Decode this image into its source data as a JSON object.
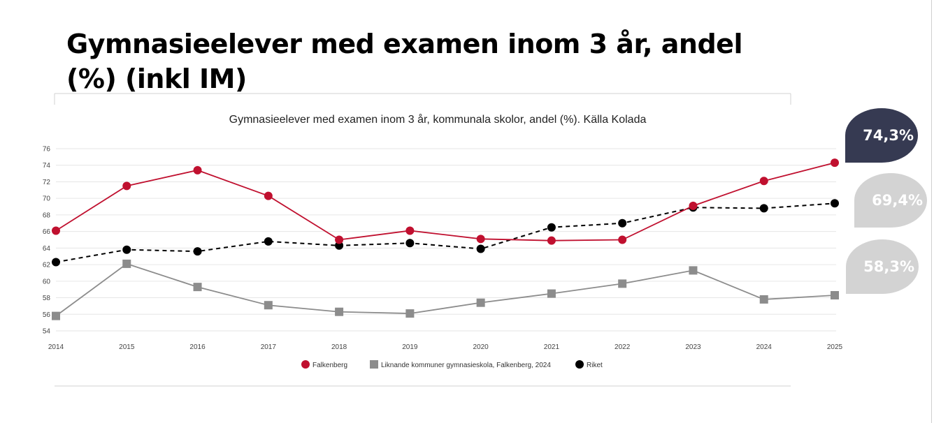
{
  "title": "Gymnasieelever med examen inom 3 år, andel (%) (inkl IM)",
  "callouts": [
    {
      "label": "74,3%",
      "color": "#363a52"
    },
    {
      "label": "69,4%",
      "color": "#d3d3d3"
    },
    {
      "label": "58,3%",
      "color": "#d3d3d3"
    }
  ],
  "chart_data": {
    "type": "line",
    "title": "Gymnasieelever med examen inom 3 år, kommunala skolor, andel (%). Källa Kolada",
    "x": [
      "2014",
      "2015",
      "2016",
      "2017",
      "2018",
      "2019",
      "2020",
      "2021",
      "2022",
      "2023",
      "2024",
      "2025"
    ],
    "ylim": [
      54,
      76
    ],
    "yticks": [
      54,
      56,
      58,
      60,
      62,
      64,
      66,
      68,
      70,
      72,
      74,
      76
    ],
    "grid": true,
    "legend": "bottom",
    "series": [
      {
        "name": "Falkenberg",
        "color": "#c0102f",
        "marker": "circle",
        "dash": false,
        "values": [
          66.1,
          71.5,
          73.4,
          70.3,
          65.0,
          66.1,
          65.1,
          64.9,
          65.0,
          69.1,
          72.1,
          74.3
        ]
      },
      {
        "name": "Liknande kommuner gymnasieskola, Falkenberg, 2024",
        "color": "#8c8c8c",
        "marker": "square",
        "dash": false,
        "values": [
          55.8,
          62.1,
          59.3,
          57.1,
          56.3,
          56.1,
          57.4,
          58.5,
          59.7,
          61.3,
          57.8,
          58.3
        ]
      },
      {
        "name": "Riket",
        "color": "#000000",
        "marker": "circle",
        "dash": true,
        "values": [
          62.3,
          63.8,
          63.6,
          64.8,
          64.3,
          64.6,
          63.9,
          66.5,
          67.0,
          68.9,
          68.8,
          69.4
        ]
      }
    ]
  }
}
